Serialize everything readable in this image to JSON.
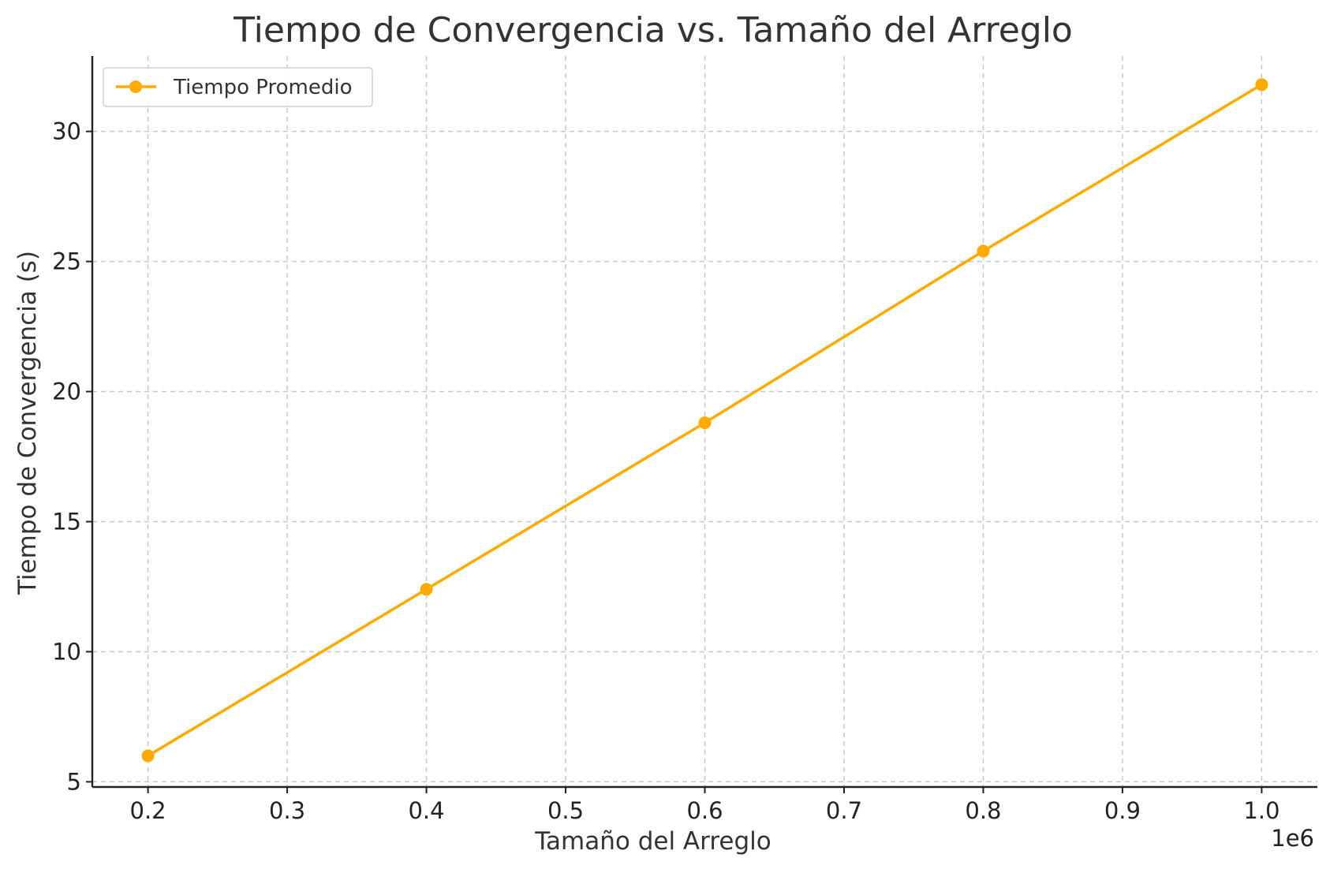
{
  "chart_data": {
    "type": "line",
    "title": "Tiempo de Convergencia vs. Tamaño del Arreglo",
    "xlabel": "Tamaño del Arreglo",
    "ylabel": "Tiempo de Convergencia (s)",
    "x_offset_label": "1e6",
    "xlim": [
      0.16,
      1.04
    ],
    "ylim": [
      4.8,
      32.9
    ],
    "x_ticks": [
      0.2,
      0.3,
      0.4,
      0.5,
      0.6,
      0.7,
      0.8,
      0.9,
      1.0
    ],
    "x_tick_labels": [
      "0.2",
      "0.3",
      "0.4",
      "0.5",
      "0.6",
      "0.7",
      "0.8",
      "0.9",
      "1.0"
    ],
    "y_ticks": [
      5,
      10,
      15,
      20,
      25,
      30
    ],
    "y_tick_labels": [
      "5",
      "10",
      "15",
      "20",
      "25",
      "30"
    ],
    "grid": true,
    "legend_position": "top-left",
    "series": [
      {
        "name": "Tiempo Promedio",
        "color": "#FFAA00",
        "marker": "circle",
        "x": [
          0.2,
          0.4,
          0.6,
          0.8,
          1.0
        ],
        "y": [
          6.0,
          12.4,
          18.8,
          25.4,
          31.8
        ]
      }
    ]
  }
}
